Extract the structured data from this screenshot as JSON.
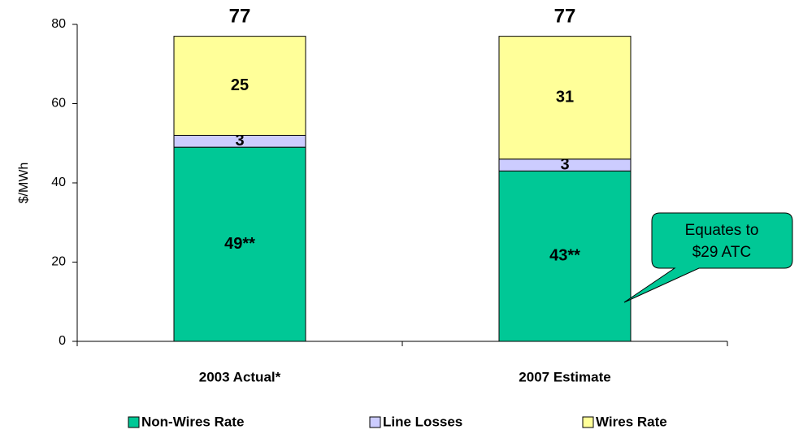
{
  "chart_data": {
    "type": "stacked_bar",
    "y_label": "$/MWh",
    "categories": [
      "2003 Actual*",
      "2007 Estimate"
    ],
    "series": [
      {
        "name": "Non-Wires Rate",
        "color": "#00c896",
        "values": [
          49,
          43
        ],
        "value_labels": [
          "49**",
          "43**"
        ]
      },
      {
        "name": "Line Losses",
        "color": "#ccccff",
        "values": [
          3,
          3
        ]
      },
      {
        "name": "Wires Rate",
        "color": "#ffff99",
        "values": [
          25,
          31
        ]
      }
    ],
    "totals": [
      77,
      77
    ],
    "ylim": [
      0,
      80
    ],
    "yticks": [
      0,
      20,
      40,
      60,
      80
    ],
    "callout": [
      "Equates to",
      "$29 ATC"
    ]
  }
}
